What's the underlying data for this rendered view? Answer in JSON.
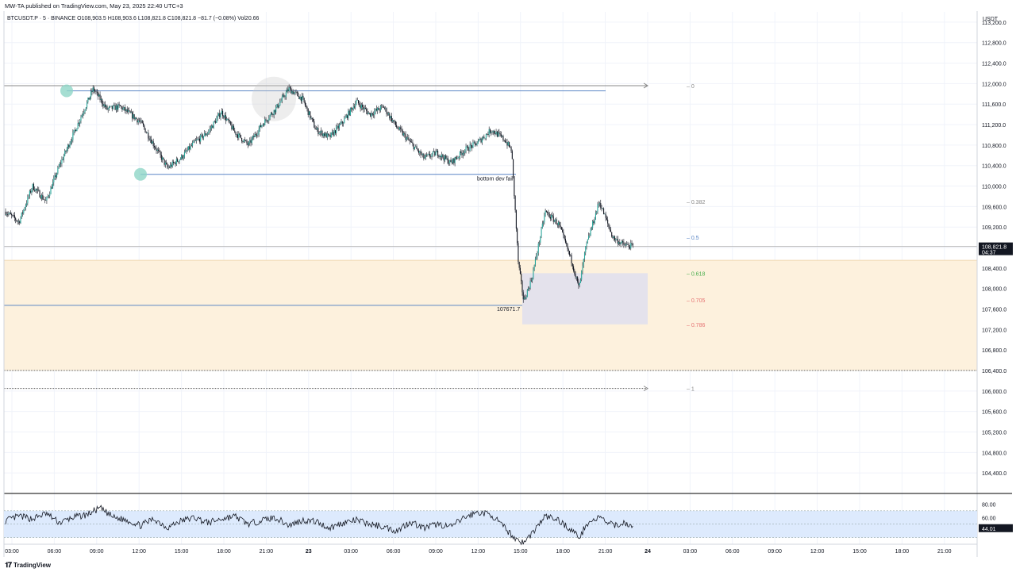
{
  "header": {
    "publisher": "MW-TA published on TradingView.com, May 23, 2025 22:40 UTC+3"
  },
  "footer": {
    "logo_text": "TradingView"
  },
  "colors": {
    "bull": "#26a69a",
    "bear": "#131722",
    "fib_zone": "#fdf1dd",
    "rsi_band": "#ddeafd",
    "range_box": "#e4e2ec",
    "level_line": "#5b86c5",
    "fib_green": "#4caf50",
    "fib_red": "#e57373",
    "fib_blue": "#5b86c5",
    "marker": "#8fd6c7"
  },
  "chart_data": {
    "type": "candlestick",
    "symbol": "BTCUSDT.P · 5 · BINANCE",
    "ohlc": {
      "O": "O108,903.5",
      "H": "H108,903.6",
      "L": "L108,821.8",
      "C": "C108,821.8",
      "change": "−81.7 (−0.08%)",
      "vol": "Vol20.66"
    },
    "currency": "USDT",
    "y_range": [
      104000,
      113400
    ],
    "y_ticks": [
      "113,200.0",
      "112,800.0",
      "112,400.0",
      "112,000.0",
      "111,600.0",
      "111,200.0",
      "110,800.0",
      "110,400.0",
      "110,000.0",
      "109,600.0",
      "109,200.0",
      "108,800.0",
      "108,400.0",
      "108,000.0",
      "107,600.0",
      "107,200.0",
      "106,800.0",
      "106,400.0",
      "106,000.0",
      "105,600.0",
      "105,200.0",
      "104,800.0",
      "104,400.0"
    ],
    "x_ticks": [
      "03:00",
      "06:00",
      "09:00",
      "12:00",
      "15:00",
      "18:00",
      "21:00",
      "23",
      "03:00",
      "06:00",
      "09:00",
      "12:00",
      "15:00",
      "18:00",
      "21:00",
      "24",
      "03:00",
      "06:00",
      "09:00",
      "12:00",
      "15:00",
      "18:00",
      "21:00"
    ],
    "price_path": [
      [
        0,
        109500
      ],
      [
        1,
        109300
      ],
      [
        2,
        110000
      ],
      [
        3,
        109700
      ],
      [
        4,
        110400
      ],
      [
        5,
        111000
      ],
      [
        6.5,
        111900
      ],
      [
        7.5,
        111500
      ],
      [
        8.5,
        111550
      ],
      [
        10,
        111250
      ],
      [
        11,
        110800
      ],
      [
        12,
        110350
      ],
      [
        13,
        110550
      ],
      [
        14,
        110850
      ],
      [
        15,
        111050
      ],
      [
        16,
        111450
      ],
      [
        17,
        111050
      ],
      [
        18,
        110800
      ],
      [
        19,
        111200
      ],
      [
        20,
        111500
      ],
      [
        21,
        111900
      ],
      [
        22,
        111700
      ],
      [
        23,
        111100
      ],
      [
        24,
        110950
      ],
      [
        25,
        111250
      ],
      [
        26,
        111650
      ],
      [
        27,
        111400
      ],
      [
        28,
        111550
      ],
      [
        29,
        111150
      ],
      [
        30,
        110850
      ],
      [
        31,
        110550
      ],
      [
        32,
        110650
      ],
      [
        33,
        110450
      ],
      [
        34,
        110700
      ],
      [
        35,
        110850
      ],
      [
        36,
        111100
      ],
      [
        37,
        110900
      ],
      [
        37.5,
        110700
      ],
      [
        38,
        108500
      ],
      [
        38.4,
        107750
      ],
      [
        39,
        108200
      ],
      [
        40,
        109500
      ],
      [
        41,
        109250
      ],
      [
        42,
        108500
      ],
      [
        42.5,
        108000
      ],
      [
        43,
        108800
      ],
      [
        44,
        109700
      ],
      [
        45,
        109000
      ],
      [
        45.8,
        108850
      ],
      [
        46.5,
        108821.8
      ]
    ],
    "levels": {
      "swing_high": 111860,
      "swing_low": 110230,
      "bottom_dev_fail": 110230,
      "low_marked": 107671.7,
      "range_top": 111960,
      "range_bottom": 106050
    },
    "labels": {
      "bottom_dev": "bottom dev fail",
      "low_value": "107671.7"
    },
    "fib_levels": [
      {
        "label": "0",
        "price": 111960
      },
      {
        "label": "0.382",
        "price": 109700
      },
      {
        "label": "0.5",
        "price": 109000
      },
      {
        "label": "0.618",
        "price": 108300
      },
      {
        "label": "0.705",
        "price": 107780
      },
      {
        "label": "0.786",
        "price": 107300
      },
      {
        "label": "1",
        "price": 106050
      }
    ],
    "fib_zone": [
      106400,
      108550
    ],
    "range_box": [
      107300,
      108300
    ],
    "current_price": "108,821.8",
    "current_price_value": 108821.8,
    "countdown": "04:37",
    "rsi": {
      "value": "44.01",
      "value_num": 44.01,
      "ticks": [
        "80.00",
        "60.00"
      ],
      "band": [
        30,
        70
      ],
      "range": [
        20,
        90
      ],
      "path": [
        [
          0,
          55
        ],
        [
          1,
          62
        ],
        [
          2,
          58
        ],
        [
          3,
          66
        ],
        [
          4,
          52
        ],
        [
          5,
          60
        ],
        [
          6,
          64
        ],
        [
          7,
          74
        ],
        [
          8,
          60
        ],
        [
          9,
          56
        ],
        [
          10,
          48
        ],
        [
          11,
          58
        ],
        [
          12,
          45
        ],
        [
          13,
          55
        ],
        [
          14,
          60
        ],
        [
          15,
          52
        ],
        [
          16,
          58
        ],
        [
          17,
          62
        ],
        [
          18,
          50
        ],
        [
          19,
          56
        ],
        [
          20,
          60
        ],
        [
          21,
          48
        ],
        [
          22,
          56
        ],
        [
          23,
          54
        ],
        [
          24,
          44
        ],
        [
          25,
          52
        ],
        [
          26,
          56
        ],
        [
          27,
          50
        ],
        [
          28,
          46
        ],
        [
          29,
          40
        ],
        [
          30,
          54
        ],
        [
          31,
          44
        ],
        [
          32,
          50
        ],
        [
          33,
          46
        ],
        [
          34,
          60
        ],
        [
          35,
          68
        ],
        [
          36,
          64
        ],
        [
          37,
          44
        ],
        [
          37.7,
          30
        ],
        [
          38.4,
          22
        ],
        [
          39,
          36
        ],
        [
          40,
          62
        ],
        [
          41,
          56
        ],
        [
          42,
          40
        ],
        [
          42.6,
          30
        ],
        [
          43,
          50
        ],
        [
          44,
          60
        ],
        [
          45,
          48
        ],
        [
          46,
          52
        ],
        [
          46.5,
          44
        ]
      ]
    }
  }
}
